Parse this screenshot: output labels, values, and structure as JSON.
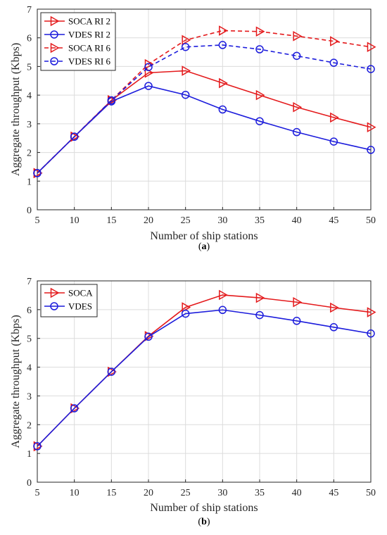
{
  "chart_data": [
    {
      "type": "line",
      "panel_label": "(a)",
      "xlabel": "Number of ship stations",
      "ylabel": "Aggregate throughput (Kbps)",
      "xlim": [
        5,
        50
      ],
      "ylim": [
        0,
        7
      ],
      "x_ticks": [
        5,
        10,
        15,
        20,
        25,
        30,
        35,
        40,
        45,
        50
      ],
      "y_ticks": [
        0,
        1,
        2,
        3,
        4,
        5,
        6,
        7
      ],
      "grid": true,
      "legend_position": "top-left",
      "x": [
        5,
        10,
        15,
        20,
        25,
        30,
        35,
        40,
        45,
        50
      ],
      "series": [
        {
          "name": "SOCA RI 2",
          "color": "#e41a1c",
          "line": "solid",
          "marker": "triangle-right",
          "values": [
            1.28,
            2.55,
            3.82,
            4.78,
            4.85,
            4.42,
            4.0,
            3.58,
            3.22,
            2.88
          ]
        },
        {
          "name": "VDES RI 2",
          "color": "#1c1cdc",
          "line": "solid",
          "marker": "circle",
          "values": [
            1.28,
            2.55,
            3.78,
            4.32,
            4.01,
            3.5,
            3.09,
            2.71,
            2.38,
            2.09
          ]
        },
        {
          "name": "SOCA RI 6",
          "color": "#e41a1c",
          "line": "dashed",
          "marker": "triangle-right",
          "values": [
            1.28,
            2.55,
            3.82,
            5.08,
            5.92,
            6.25,
            6.22,
            6.06,
            5.88,
            5.68
          ]
        },
        {
          "name": "VDES RI 6",
          "color": "#1c1cdc",
          "line": "dashed",
          "marker": "circle",
          "values": [
            1.28,
            2.55,
            3.82,
            4.98,
            5.68,
            5.75,
            5.6,
            5.37,
            5.13,
            4.91
          ]
        }
      ]
    },
    {
      "type": "line",
      "panel_label": "(b)",
      "xlabel": "Number of ship stations",
      "ylabel": "Aggregate throughput (Kbps)",
      "xlim": [
        5,
        50
      ],
      "ylim": [
        0,
        7
      ],
      "x_ticks": [
        5,
        10,
        15,
        20,
        25,
        30,
        35,
        40,
        45,
        50
      ],
      "y_ticks": [
        0,
        1,
        2,
        3,
        4,
        5,
        6,
        7
      ],
      "grid": true,
      "legend_position": "top-left",
      "x": [
        5,
        10,
        15,
        20,
        25,
        30,
        35,
        40,
        45,
        50
      ],
      "series": [
        {
          "name": "SOCA",
          "color": "#e41a1c",
          "line": "solid",
          "marker": "triangle-right",
          "values": [
            1.25,
            2.57,
            3.84,
            5.08,
            6.08,
            6.51,
            6.41,
            6.26,
            6.07,
            5.91
          ]
        },
        {
          "name": "VDES",
          "color": "#1c1cdc",
          "line": "solid",
          "marker": "circle",
          "values": [
            1.25,
            2.57,
            3.84,
            5.06,
            5.86,
            5.99,
            5.81,
            5.61,
            5.39,
            5.17
          ]
        }
      ]
    }
  ]
}
